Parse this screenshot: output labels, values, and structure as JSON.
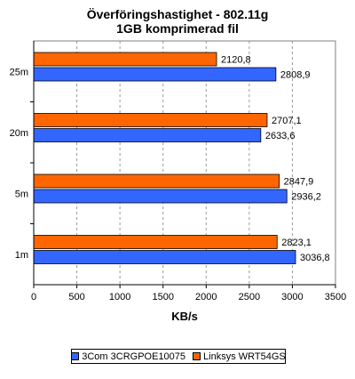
{
  "chart_data": {
    "type": "bar",
    "orientation": "horizontal",
    "title": "Överföringshastighet - 802.11g",
    "subtitle": "1GB komprimerad fil",
    "xlabel": "KB/s",
    "ylabel": "",
    "xlim": [
      0,
      3500
    ],
    "xticks": [
      0,
      500,
      1000,
      1500,
      2000,
      2500,
      3000,
      3500
    ],
    "grid": "vertical-dashed",
    "legend": "bottom",
    "categories": [
      "25m",
      "20m",
      "5m",
      "1m"
    ],
    "series": [
      {
        "name": "Linksys WRT54GS",
        "color": "#FF6600",
        "values": [
          2120.8,
          2707.1,
          2847.9,
          2823.1
        ],
        "labels": [
          "2120,8",
          "2707,1",
          "2847,9",
          "2823,1"
        ]
      },
      {
        "name": "3Com 3CRGPOE10075",
        "color": "#3366FF",
        "values": [
          2808.9,
          2633.6,
          2936.2,
          3036.8
        ],
        "labels": [
          "2808,9",
          "2633,6",
          "2936,2",
          "3036,8"
        ]
      }
    ],
    "legend_order": [
      "3Com 3CRGPOE10075",
      "Linksys WRT54GS"
    ]
  }
}
